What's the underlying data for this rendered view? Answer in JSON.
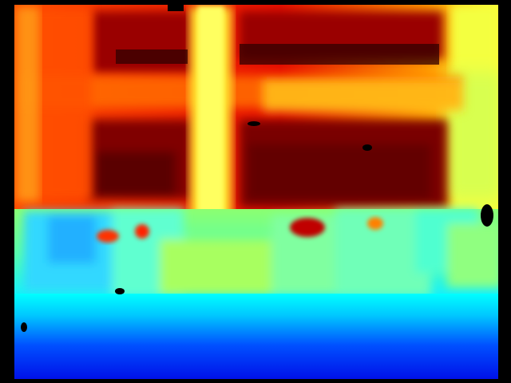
{
  "image": {
    "kind": "depth-map",
    "colormap": "jet",
    "colormap_stops": [
      "#00007f",
      "#0000ff",
      "#00bfff",
      "#00ffff",
      "#7fff7f",
      "#ffff00",
      "#ff7f00",
      "#ff0000",
      "#7f0000"
    ],
    "invalid_color": "#000000"
  }
}
